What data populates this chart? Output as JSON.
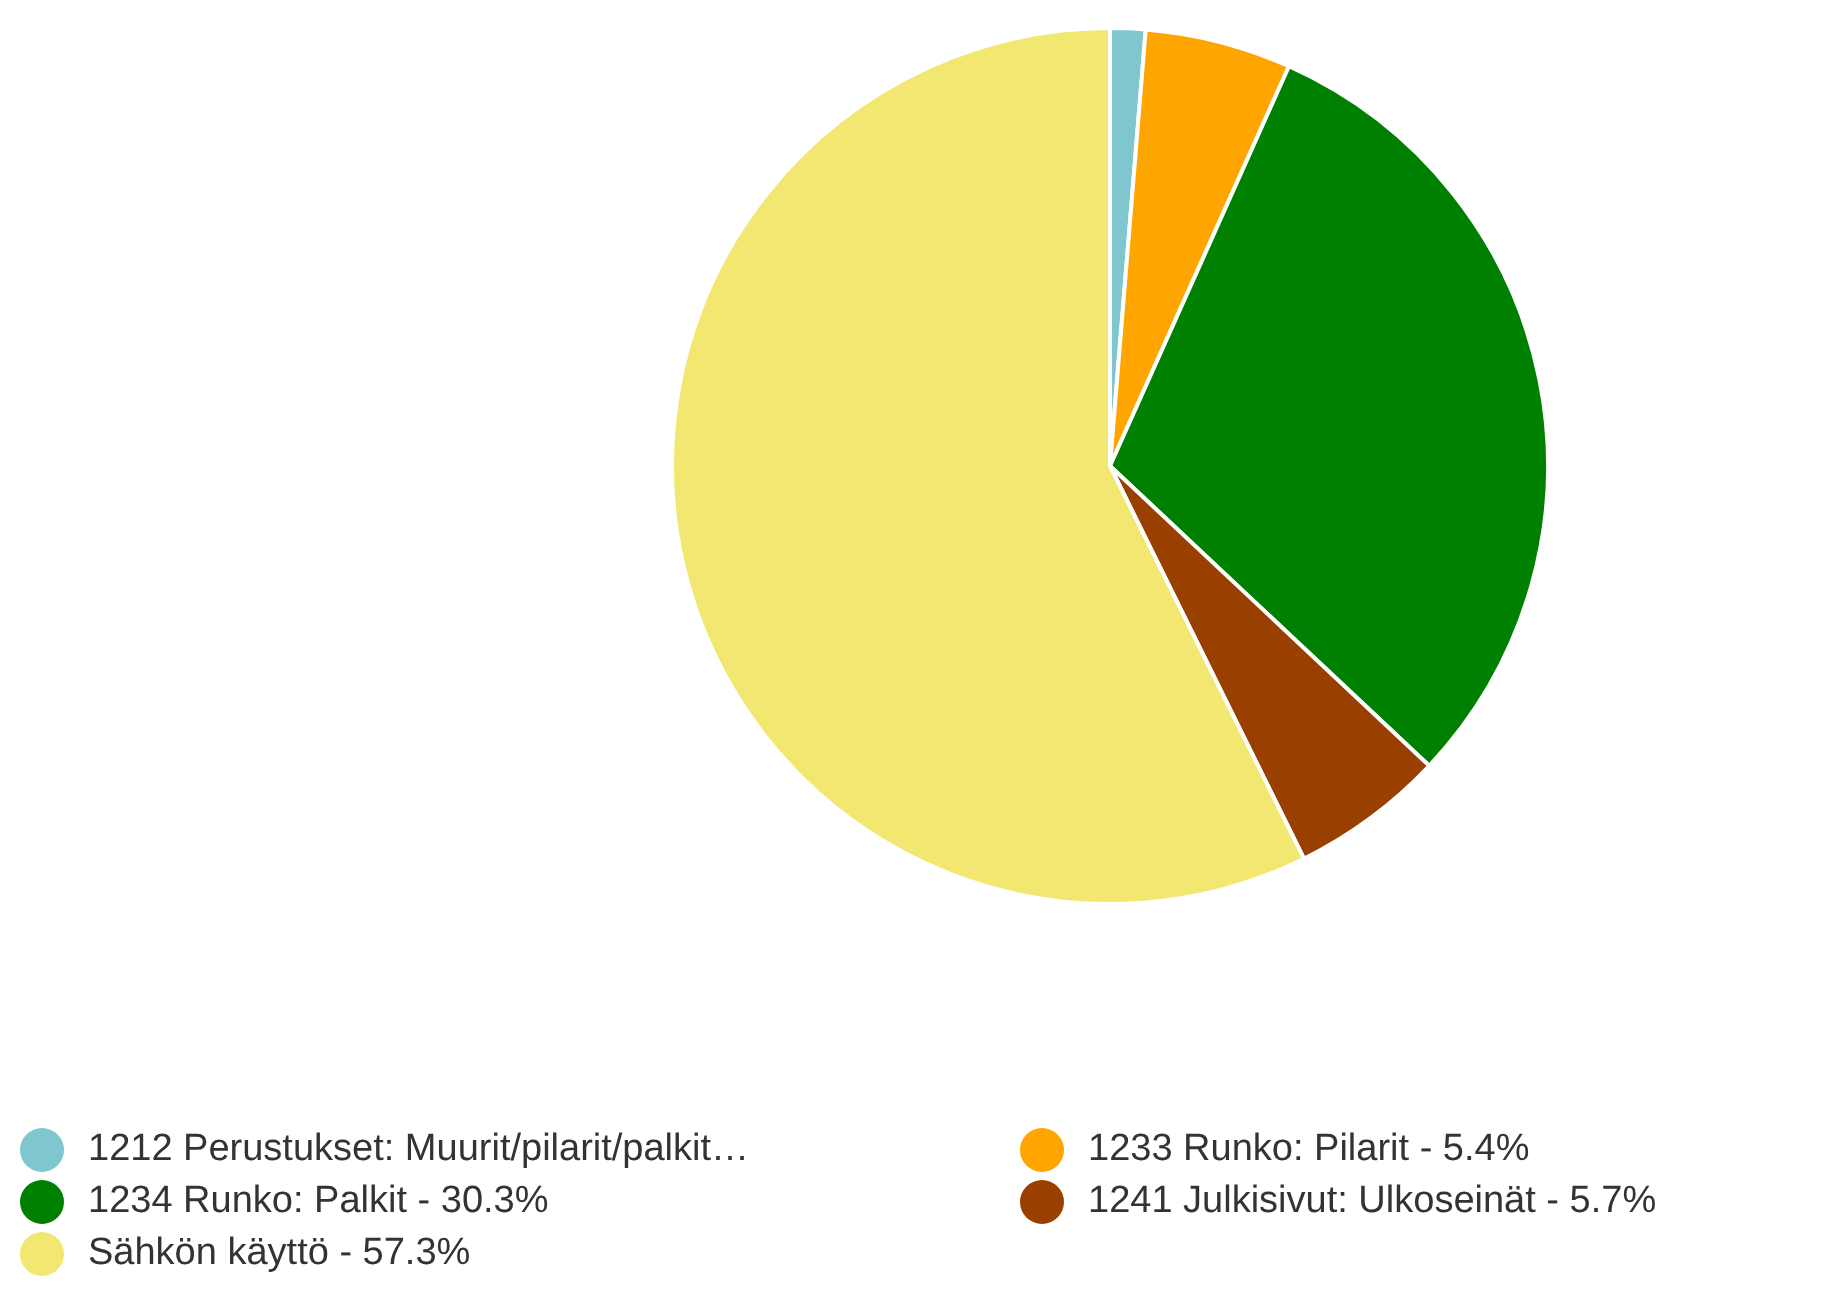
{
  "chart_data": {
    "type": "pie",
    "categories": [
      "1212 Perustukset: Muurit/pilarit/palkit…",
      "1233 Runko: Pilarit - 5.4%",
      "1234 Runko: Palkit - 30.3%",
      "1241 Julkisivut: Ulkoseinät - 5.7%",
      "Sähkön käyttö - 57.3%"
    ],
    "values": [
      1.3,
      5.4,
      30.3,
      5.7,
      57.3
    ],
    "colors": [
      "#7fc6cf",
      "#ffa500",
      "#008000",
      "#993f00",
      "#f2e871"
    ],
    "legend": "bottom"
  }
}
